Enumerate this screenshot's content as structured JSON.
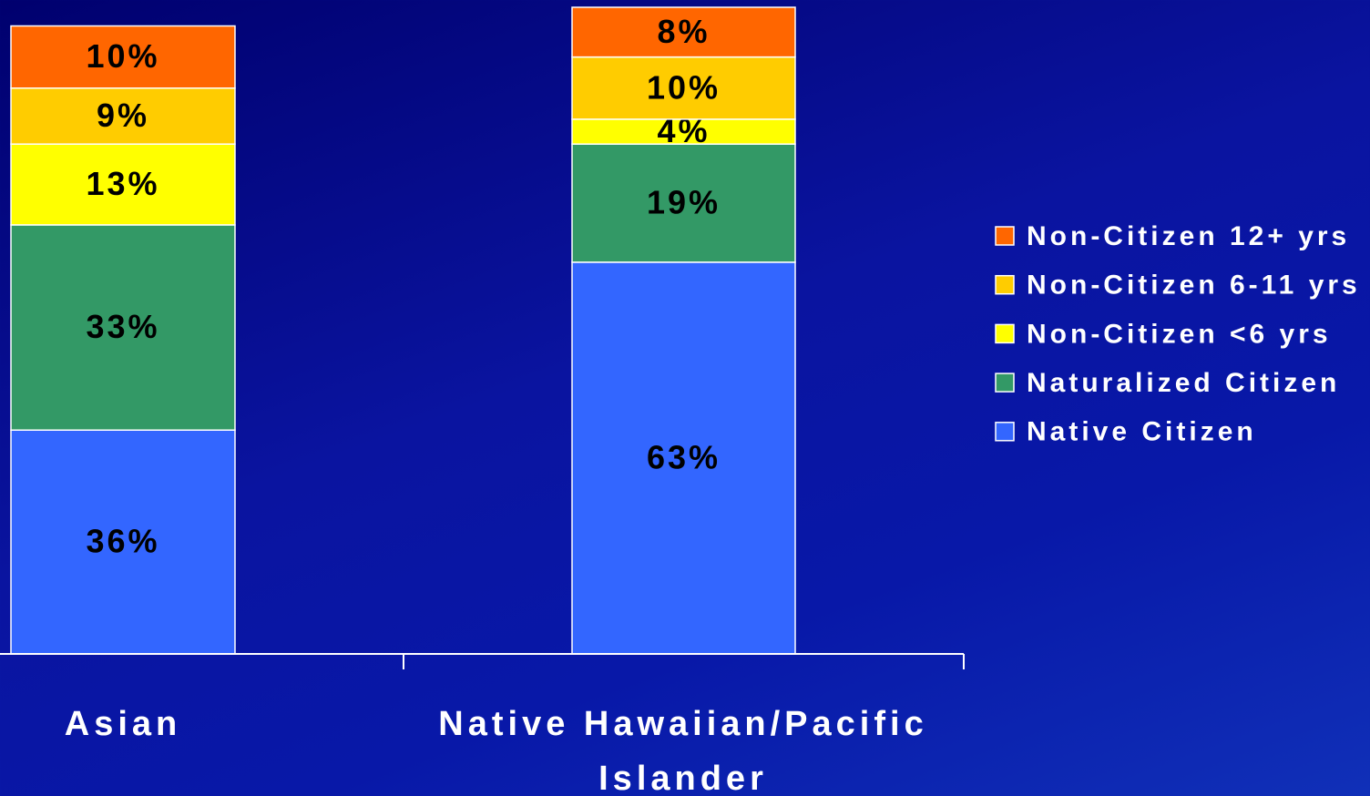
{
  "chart_data": {
    "type": "stacked_bar",
    "categories": [
      "Asian",
      "Native Hawaiian/Pacific Islander"
    ],
    "series": [
      {
        "name": "Native Citizen",
        "color": "#3366ff",
        "values": [
          36,
          63
        ],
        "value_labels": [
          "36%",
          "63%"
        ]
      },
      {
        "name": "Naturalized Citizen",
        "color": "#339966",
        "values": [
          33,
          19
        ],
        "value_labels": [
          "33%",
          "19%"
        ]
      },
      {
        "name": "Non-Citizen <6 yrs",
        "color": "#ffff00",
        "values": [
          13,
          4
        ],
        "value_labels": [
          "13%",
          "4%"
        ]
      },
      {
        "name": "Non-Citizen 6-11 yrs",
        "color": "#ffcc00",
        "values": [
          9,
          10
        ],
        "value_labels": [
          "9%",
          "10%"
        ]
      },
      {
        "name": "Non-Citizen 12+ yrs",
        "color": "#ff6600",
        "values": [
          10,
          8
        ],
        "value_labels": [
          "10%",
          "8%"
        ]
      }
    ],
    "ylim": [
      0,
      104
    ]
  }
}
